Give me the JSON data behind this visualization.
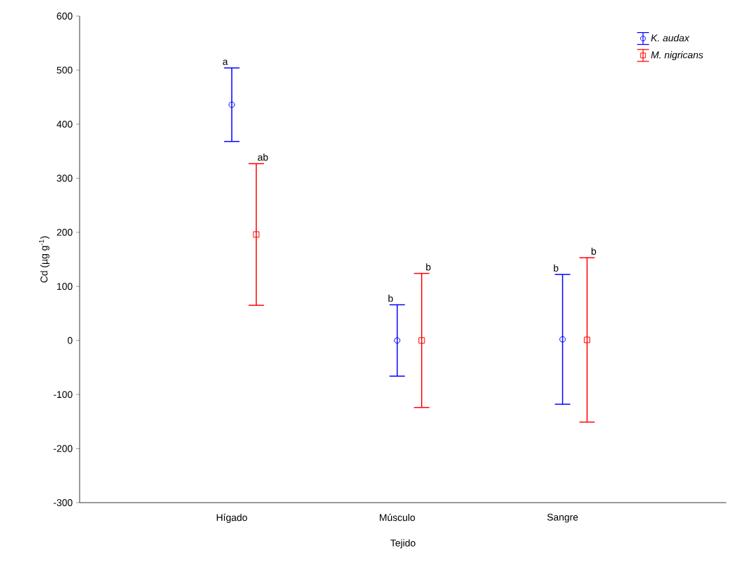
{
  "chart_data": {
    "type": "scatter",
    "xlabel": "Tejido",
    "ylabel": "Cd (µg g$^{-1}$)",
    "categories": [
      "Hígado",
      "Músculo",
      "Sangre"
    ],
    "series": [
      {
        "name": "*K. audax*",
        "color": "#0000ff",
        "marker": "circle",
        "values": [
          436,
          0,
          2
        ],
        "errors": [
          68,
          66,
          120
        ]
      },
      {
        "name": "*M. nigricans*",
        "color": "#ff0000",
        "marker": "square",
        "values": [
          196,
          0,
          1
        ],
        "errors": [
          131,
          124,
          152
        ]
      }
    ],
    "ylim": [
      -300,
      600
    ],
    "yticks": [
      -300,
      -200,
      -100,
      0,
      100,
      200,
      300,
      400,
      500,
      600
    ],
    "grid": false,
    "legend": "top right",
    "annotations": [
      "a",
      "ab",
      "b",
      "b",
      "b",
      "b"
    ]
  }
}
